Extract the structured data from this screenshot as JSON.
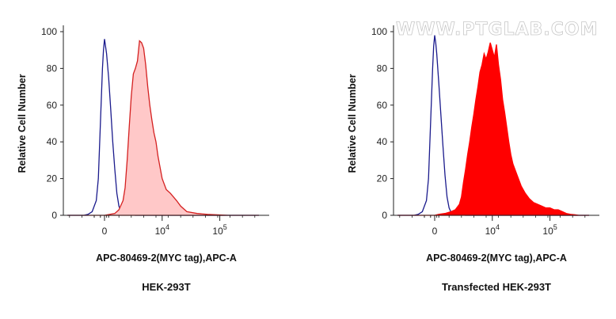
{
  "watermark": "WWW.PTGLAB.COM",
  "chart_data": [
    {
      "type": "area",
      "ylabel": "Relative Cell Number",
      "xlabel": "APC-80469-2(MYC tag),APC-A",
      "caption": "HEK-293T",
      "ylim": [
        0,
        100
      ],
      "y_ticks": [
        "0",
        "20",
        "40",
        "60",
        "80",
        "100"
      ],
      "x_ticks": [
        {
          "pos": 0.2,
          "base": "0",
          "exp": ""
        },
        {
          "pos": 0.48,
          "base": "10",
          "exp": "4"
        },
        {
          "pos": 0.76,
          "base": "10",
          "exp": "5"
        }
      ],
      "colors": {
        "control": "#1a1a8c",
        "sample_stroke": "#d42020",
        "sample_fill": "#ffc8c8"
      },
      "series": [
        {
          "role": "control",
          "x": [
            0.02,
            0.1,
            0.12,
            0.14,
            0.16,
            0.17,
            0.18,
            0.19,
            0.195,
            0.2,
            0.205,
            0.21,
            0.22,
            0.23,
            0.24,
            0.25,
            0.26,
            0.27,
            0.28,
            0.3,
            0.35,
            0.45,
            0.6,
            0.8,
            0.95
          ],
          "y": [
            0,
            0,
            0.5,
            2,
            8,
            20,
            50,
            80,
            90,
            96,
            92,
            88,
            75,
            58,
            40,
            25,
            12,
            5,
            2,
            0.5,
            0,
            0,
            0,
            0,
            0
          ]
        },
        {
          "role": "sample",
          "x": [
            0.02,
            0.2,
            0.25,
            0.27,
            0.29,
            0.3,
            0.31,
            0.32,
            0.33,
            0.34,
            0.35,
            0.36,
            0.37,
            0.38,
            0.39,
            0.4,
            0.41,
            0.42,
            0.43,
            0.44,
            0.45,
            0.46,
            0.48,
            0.5,
            0.52,
            0.55,
            0.57,
            0.6,
            0.65,
            0.7,
            0.8,
            0.95
          ],
          "y": [
            0,
            0,
            1,
            3,
            8,
            15,
            30,
            48,
            65,
            77,
            80,
            84,
            95,
            94,
            91,
            82,
            70,
            60,
            52,
            45,
            40,
            32,
            20,
            14,
            12,
            8,
            5,
            2,
            1,
            0.5,
            0,
            0
          ]
        }
      ]
    },
    {
      "type": "area",
      "ylabel": "Relative Cell Number",
      "xlabel": "APC-80469-2(MYC tag),APC-A",
      "caption": "Transfected HEK-293T",
      "ylim": [
        0,
        100
      ],
      "y_ticks": [
        "0",
        "20",
        "40",
        "60",
        "80",
        "100"
      ],
      "x_ticks": [
        {
          "pos": 0.2,
          "base": "0",
          "exp": ""
        },
        {
          "pos": 0.48,
          "base": "10",
          "exp": "4"
        },
        {
          "pos": 0.76,
          "base": "10",
          "exp": "5"
        }
      ],
      "colors": {
        "control": "#1a1a8c",
        "sample_stroke": "#ff0000",
        "sample_fill": "#ff0000"
      },
      "series": [
        {
          "role": "control",
          "x": [
            0.02,
            0.1,
            0.12,
            0.14,
            0.16,
            0.17,
            0.18,
            0.19,
            0.195,
            0.2,
            0.205,
            0.21,
            0.22,
            0.23,
            0.24,
            0.25,
            0.26,
            0.27,
            0.28,
            0.3,
            0.35,
            0.45,
            0.6,
            0.8,
            0.95
          ],
          "y": [
            0,
            0,
            0.5,
            2,
            8,
            20,
            50,
            80,
            92,
            98,
            94,
            88,
            72,
            55,
            38,
            22,
            10,
            4,
            1.5,
            0.5,
            0,
            0,
            0,
            0,
            0
          ]
        },
        {
          "role": "sample",
          "x": [
            0.02,
            0.2,
            0.22,
            0.25,
            0.28,
            0.3,
            0.32,
            0.33,
            0.34,
            0.35,
            0.36,
            0.37,
            0.38,
            0.39,
            0.4,
            0.41,
            0.42,
            0.43,
            0.44,
            0.45,
            0.46,
            0.47,
            0.48,
            0.49,
            0.5,
            0.51,
            0.52,
            0.53,
            0.54,
            0.55,
            0.56,
            0.57,
            0.58,
            0.6,
            0.62,
            0.64,
            0.66,
            0.68,
            0.7,
            0.72,
            0.74,
            0.76,
            0.78,
            0.8,
            0.82,
            0.84,
            0.86,
            0.88,
            0.9,
            0.93,
            0.95
          ],
          "y": [
            0,
            0,
            0.5,
            1,
            2,
            3,
            6,
            10,
            18,
            25,
            33,
            40,
            48,
            55,
            63,
            70,
            78,
            82,
            88,
            85,
            89,
            94,
            90,
            86,
            93,
            82,
            74,
            63,
            56,
            48,
            40,
            33,
            28,
            22,
            16,
            12,
            9,
            7,
            6,
            5,
            4,
            4,
            3,
            3,
            2,
            1,
            0.5,
            0.3,
            0,
            0,
            0
          ]
        }
      ]
    }
  ]
}
